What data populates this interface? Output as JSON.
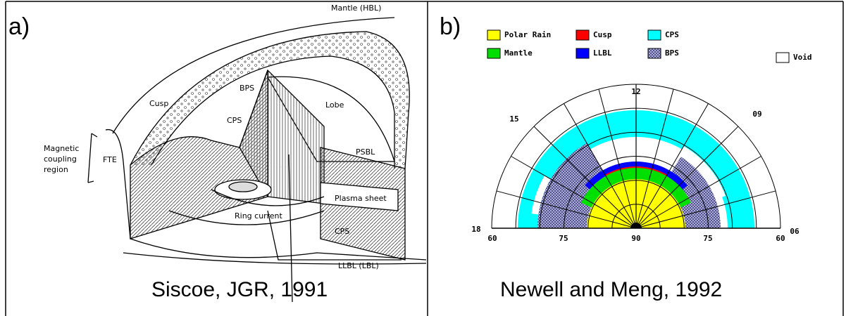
{
  "panels": [
    {
      "label": "a)",
      "caption": "Siscoe, JGR, 1991",
      "diagram_labels": [
        "Mantle (HBL)",
        "Cusp",
        "BPS",
        "Lobe",
        "CPS",
        "PSBL",
        "Magnetic",
        "coupling",
        "region",
        "FTE",
        "Plasma sheet",
        "Ring current",
        "CPS",
        "LLBL (LBL)"
      ]
    },
    {
      "label": "b)",
      "caption": "Newell and Meng, 1992",
      "legend": [
        {
          "name": "Polar Rain",
          "color": "#ffff00"
        },
        {
          "name": "Cusp",
          "color": "#ff0000"
        },
        {
          "name": "CPS",
          "color": "#00ffff"
        },
        {
          "name": "Mantle",
          "color": "#00e000"
        },
        {
          "name": "LLBL",
          "color": "#0000ff"
        },
        {
          "name": "BPS",
          "color": "hatch"
        },
        {
          "name": "Void",
          "color": "#ffffff"
        }
      ],
      "hour_labels": [
        "12",
        "15",
        "09",
        "18",
        "06"
      ],
      "latitude_labels": [
        "60",
        "75",
        "90",
        "75",
        "60"
      ]
    }
  ]
}
